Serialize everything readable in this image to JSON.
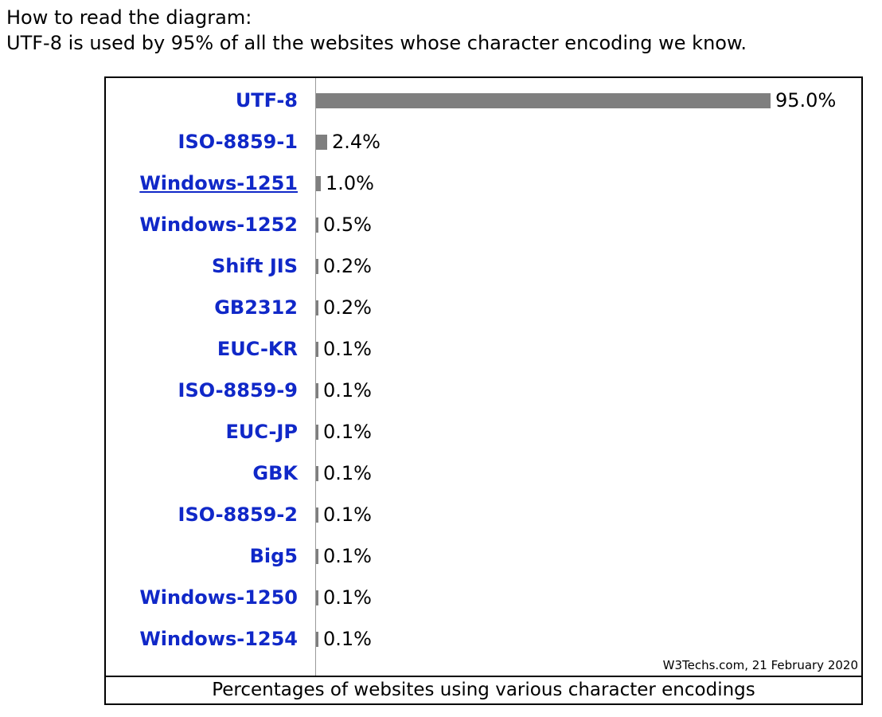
{
  "intro": {
    "heading": "How to read the diagram:",
    "explanation": "UTF-8 is used by 95% of all the websites whose character encoding we know."
  },
  "chart_data": {
    "type": "bar",
    "orientation": "horizontal",
    "categories": [
      "UTF-8",
      "ISO-8859-1",
      "Windows-1251",
      "Windows-1252",
      "Shift JIS",
      "GB2312",
      "EUC-KR",
      "ISO-8859-9",
      "EUC-JP",
      "GBK",
      "ISO-8859-2",
      "Big5",
      "Windows-1250",
      "Windows-1254"
    ],
    "values": [
      95.0,
      2.4,
      1.0,
      0.5,
      0.2,
      0.2,
      0.1,
      0.1,
      0.1,
      0.1,
      0.1,
      0.1,
      0.1,
      0.1
    ],
    "value_labels": [
      "95.0%",
      "2.4%",
      "1.0%",
      "0.5%",
      "0.2%",
      "0.2%",
      "0.1%",
      "0.1%",
      "0.1%",
      "0.1%",
      "0.1%",
      "0.1%",
      "0.1%",
      "0.1%"
    ],
    "xlim": [
      0,
      95
    ],
    "title": "",
    "caption": "Percentages of websites using various character encodings",
    "source_note": "W3Techs.com, 21 February 2020",
    "grid": false,
    "legend": "none",
    "bar_color": "#7f7f7f",
    "label_color": "#1028c8"
  }
}
